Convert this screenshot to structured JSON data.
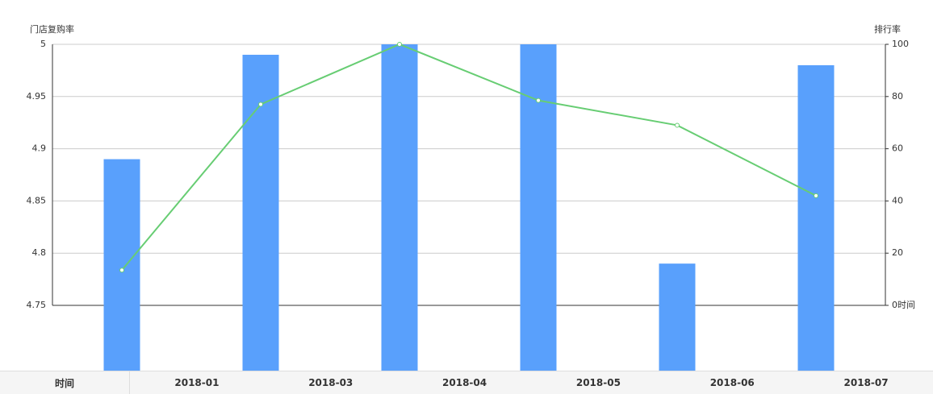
{
  "chart_data": {
    "type": "bar-line",
    "y_label": "门店复购率",
    "y2_label": "排行率",
    "x_label": "时间",
    "series": [
      {
        "type": "bar",
        "color": "#59a0fc",
        "values": [
          4.89,
          4.99,
          5,
          5,
          4.79,
          4.98
        ]
      },
      {
        "type": "line",
        "axis": "y2",
        "color": "#67cd73",
        "values": [
          13.5,
          77,
          100,
          78.5,
          69,
          42
        ]
      }
    ],
    "ylim": [
      4.75,
      5
    ],
    "yticks": [
      4.75,
      4.8,
      4.85,
      4.9,
      4.95,
      5
    ],
    "y2lim": [
      0,
      100
    ],
    "y2ticks": [
      0,
      20,
      40,
      60,
      80,
      100
    ],
    "grid": true
  },
  "table": {
    "header": "时间",
    "cells": [
      "2018-01",
      "2018-03",
      "2018-04",
      "2018-05",
      "2018-06",
      "2018-07"
    ]
  }
}
